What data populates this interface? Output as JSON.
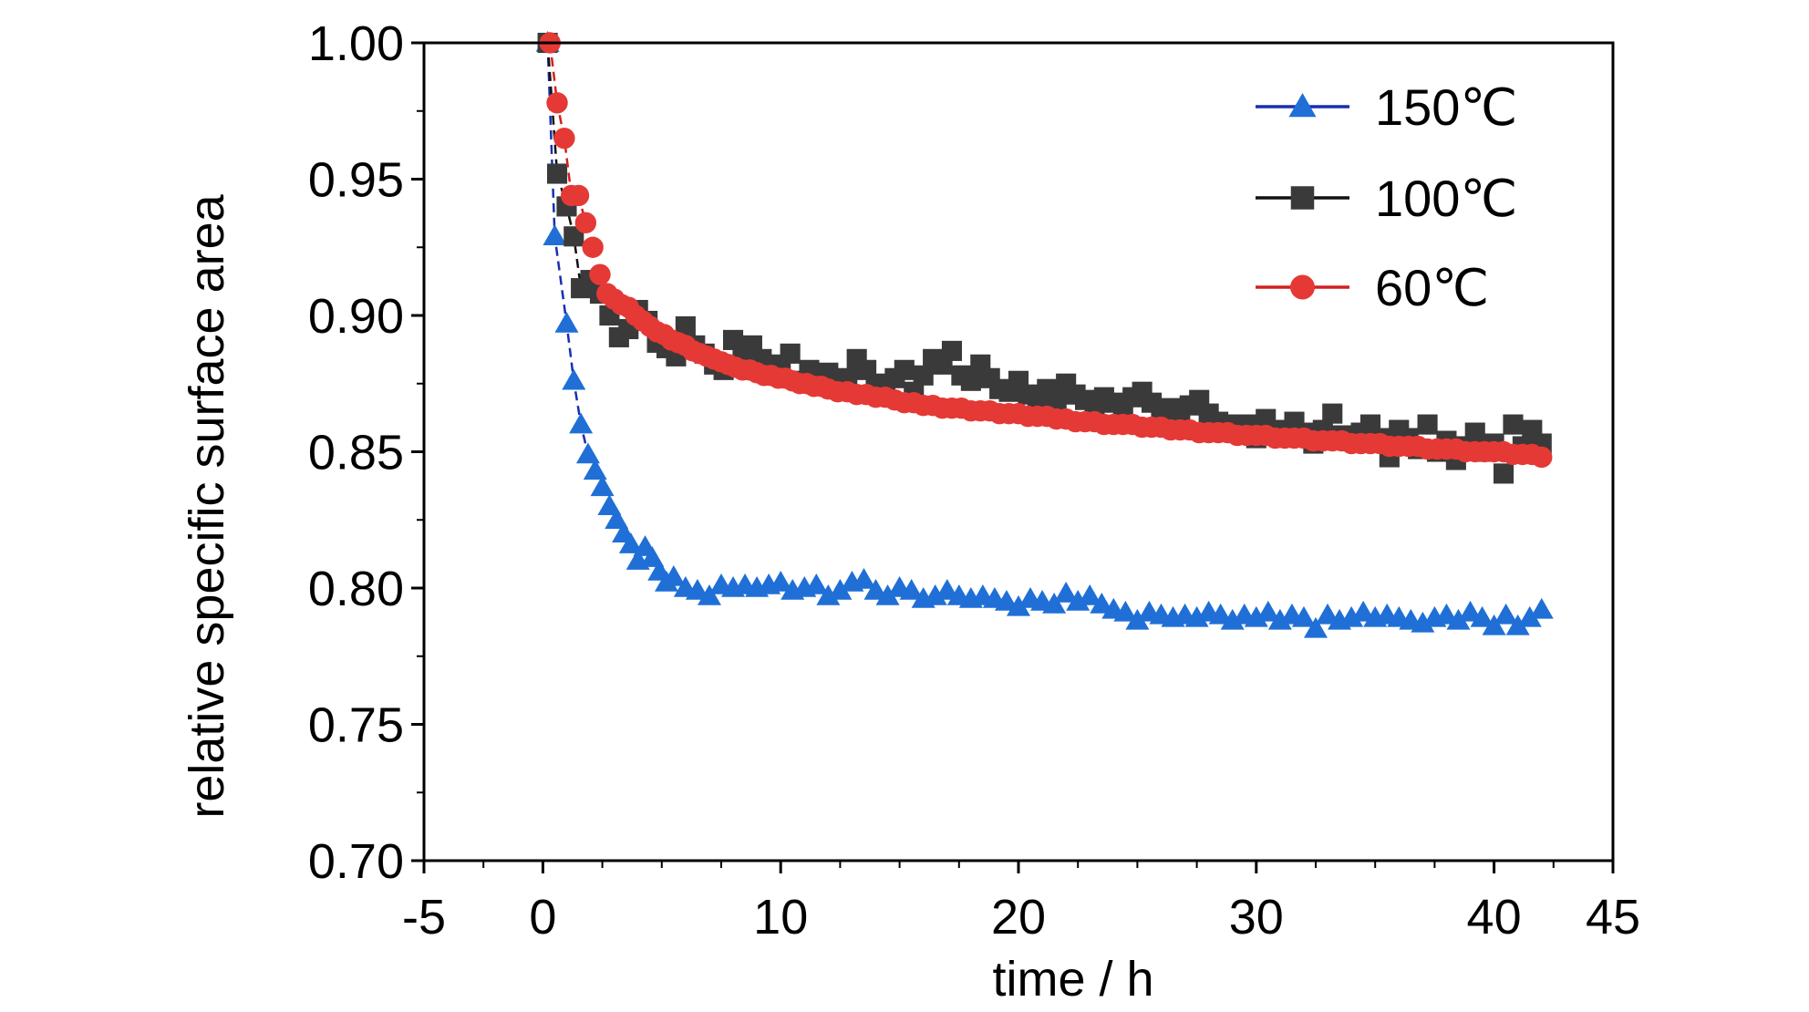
{
  "chart_data": {
    "type": "scatter",
    "xlabel": "time / h",
    "ylabel": "relative specific surface area",
    "xlim": [
      -5,
      45
    ],
    "ylim": [
      0.7,
      1.0
    ],
    "xticks": [
      "-5",
      "0",
      "10",
      "20",
      "30",
      "40",
      "45"
    ],
    "xtick_values": [
      -5,
      0,
      10,
      20,
      30,
      40,
      45
    ],
    "yticks": [
      "0.70",
      "0.75",
      "0.80",
      "0.85",
      "0.90",
      "0.95",
      "1.00"
    ],
    "ytick_values": [
      0.7,
      0.75,
      0.8,
      0.85,
      0.9,
      0.95,
      1.0
    ],
    "grid": false,
    "legend_position": "top-right",
    "series": [
      {
        "name": "150℃",
        "marker": "triangle",
        "color": "#1f6fd6",
        "line_color": "#1a2fb0",
        "x": [
          0.2,
          0.5,
          1.0,
          1.3,
          1.6,
          1.9,
          2.2,
          2.5,
          2.8,
          3.1,
          3.4,
          3.7,
          4.0,
          4.3,
          4.6,
          4.9,
          5.2,
          5.5,
          6.0,
          6.5,
          7.0,
          7.5,
          8.0,
          8.5,
          9.0,
          9.5,
          10.0,
          10.5,
          11.0,
          11.5,
          12.0,
          12.5,
          13.0,
          13.5,
          14.0,
          14.5,
          15.0,
          15.5,
          16.0,
          16.5,
          17.0,
          17.5,
          18.0,
          18.5,
          19.0,
          19.5,
          20.0,
          20.5,
          21.0,
          21.5,
          22.0,
          22.5,
          23.0,
          23.5,
          24.0,
          24.5,
          25.0,
          25.5,
          26.0,
          26.5,
          27.0,
          27.5,
          28.0,
          28.5,
          29.0,
          29.5,
          30.0,
          30.5,
          31.0,
          31.5,
          32.0,
          32.5,
          33.0,
          33.5,
          34.0,
          34.5,
          35.0,
          35.5,
          36.0,
          36.5,
          37.0,
          37.5,
          38.0,
          38.5,
          39.0,
          39.5,
          40.0,
          40.5,
          41.0,
          41.5,
          42.0
        ],
        "y": [
          1.0,
          0.929,
          0.897,
          0.876,
          0.86,
          0.849,
          0.843,
          0.837,
          0.83,
          0.825,
          0.82,
          0.816,
          0.81,
          0.815,
          0.811,
          0.806,
          0.802,
          0.804,
          0.8,
          0.799,
          0.797,
          0.801,
          0.8,
          0.801,
          0.8,
          0.801,
          0.802,
          0.799,
          0.8,
          0.801,
          0.797,
          0.799,
          0.802,
          0.803,
          0.799,
          0.797,
          0.8,
          0.799,
          0.796,
          0.797,
          0.799,
          0.797,
          0.796,
          0.797,
          0.796,
          0.795,
          0.793,
          0.796,
          0.795,
          0.794,
          0.798,
          0.795,
          0.797,
          0.794,
          0.792,
          0.791,
          0.788,
          0.791,
          0.79,
          0.789,
          0.79,
          0.789,
          0.791,
          0.79,
          0.788,
          0.79,
          0.789,
          0.791,
          0.788,
          0.79,
          0.789,
          0.785,
          0.79,
          0.788,
          0.789,
          0.791,
          0.789,
          0.79,
          0.789,
          0.788,
          0.787,
          0.789,
          0.79,
          0.788,
          0.791,
          0.789,
          0.786,
          0.79,
          0.786,
          0.789,
          0.792
        ]
      },
      {
        "name": "100℃",
        "marker": "square",
        "color": "#3a3a3a",
        "line_color": "#111111",
        "x": [
          0.2,
          0.6,
          1.0,
          1.3,
          1.6,
          2.0,
          2.4,
          2.8,
          3.2,
          3.6,
          4.0,
          4.4,
          4.8,
          5.2,
          5.6,
          6.0,
          6.4,
          6.8,
          7.2,
          7.6,
          8.0,
          8.4,
          8.8,
          9.2,
          9.6,
          10.0,
          10.4,
          10.8,
          11.2,
          11.6,
          12.0,
          12.4,
          12.8,
          13.2,
          13.6,
          14.0,
          14.4,
          14.8,
          15.2,
          15.6,
          16.0,
          16.4,
          16.8,
          17.2,
          17.6,
          18.0,
          18.4,
          18.8,
          19.2,
          19.6,
          20.0,
          20.4,
          20.8,
          21.2,
          21.6,
          22.0,
          22.4,
          22.8,
          23.2,
          23.6,
          24.0,
          24.4,
          24.8,
          25.2,
          25.6,
          26.0,
          26.4,
          26.8,
          27.2,
          27.6,
          28.0,
          28.4,
          28.8,
          29.2,
          29.6,
          30.0,
          30.4,
          30.8,
          31.2,
          31.6,
          32.0,
          32.4,
          32.8,
          33.2,
          33.6,
          34.0,
          34.4,
          34.8,
          35.2,
          35.6,
          36.0,
          36.4,
          36.8,
          37.2,
          37.6,
          38.0,
          38.4,
          38.8,
          39.2,
          39.6,
          40.0,
          40.4,
          40.8,
          41.2,
          41.6,
          42.0
        ],
        "y": [
          1.0,
          0.952,
          0.94,
          0.929,
          0.91,
          0.913,
          0.908,
          0.9,
          0.892,
          0.895,
          0.902,
          0.898,
          0.89,
          0.888,
          0.885,
          0.896,
          0.889,
          0.886,
          0.882,
          0.88,
          0.891,
          0.885,
          0.889,
          0.884,
          0.878,
          0.882,
          0.886,
          0.876,
          0.88,
          0.876,
          0.879,
          0.876,
          0.877,
          0.884,
          0.88,
          0.875,
          0.873,
          0.877,
          0.88,
          0.872,
          0.878,
          0.884,
          0.882,
          0.887,
          0.878,
          0.876,
          0.882,
          0.877,
          0.873,
          0.872,
          0.876,
          0.871,
          0.87,
          0.873,
          0.869,
          0.875,
          0.871,
          0.869,
          0.866,
          0.87,
          0.868,
          0.866,
          0.87,
          0.872,
          0.868,
          0.864,
          0.866,
          0.862,
          0.867,
          0.869,
          0.864,
          0.861,
          0.86,
          0.857,
          0.86,
          0.855,
          0.862,
          0.858,
          0.856,
          0.861,
          0.857,
          0.853,
          0.858,
          0.864,
          0.856,
          0.854,
          0.857,
          0.86,
          0.855,
          0.848,
          0.858,
          0.855,
          0.851,
          0.86,
          0.85,
          0.854,
          0.847,
          0.852,
          0.857,
          0.85,
          0.853,
          0.842,
          0.86,
          0.852,
          0.858,
          0.853
        ]
      },
      {
        "name": "60℃",
        "marker": "circle",
        "color": "#e53935",
        "line_color": "#d32020",
        "x": [
          0.3,
          0.6,
          0.9,
          1.2,
          1.5,
          1.8,
          2.1,
          2.4,
          2.7,
          3.0,
          3.3,
          3.6,
          3.9,
          4.2,
          4.5,
          4.8,
          5.1,
          5.4,
          5.7,
          6.0,
          6.3,
          6.6,
          6.9,
          7.2,
          7.5,
          7.8,
          8.1,
          8.4,
          8.7,
          9.0,
          9.3,
          9.6,
          9.9,
          10.2,
          10.5,
          10.8,
          11.1,
          11.4,
          11.7,
          12.0,
          12.4,
          12.8,
          13.2,
          13.6,
          14.0,
          14.4,
          14.8,
          15.2,
          15.6,
          16.0,
          16.4,
          16.8,
          17.2,
          17.6,
          18.0,
          18.4,
          18.8,
          19.2,
          19.6,
          20.0,
          20.4,
          20.8,
          21.2,
          21.6,
          22.0,
          22.4,
          22.8,
          23.2,
          23.6,
          24.0,
          24.4,
          24.8,
          25.2,
          25.6,
          26.0,
          26.4,
          26.8,
          27.2,
          27.6,
          28.0,
          28.4,
          28.8,
          29.2,
          29.6,
          30.0,
          30.4,
          30.8,
          31.2,
          31.6,
          32.0,
          32.4,
          32.8,
          33.2,
          33.6,
          34.0,
          34.4,
          34.8,
          35.2,
          35.6,
          36.0,
          36.4,
          36.8,
          37.2,
          37.6,
          38.0,
          38.4,
          38.8,
          39.2,
          39.6,
          40.0,
          40.4,
          40.8,
          41.2,
          41.6,
          42.0
        ],
        "y": [
          1.0,
          0.978,
          0.965,
          0.944,
          0.944,
          0.934,
          0.925,
          0.915,
          0.908,
          0.906,
          0.904,
          0.903,
          0.9,
          0.898,
          0.896,
          0.894,
          0.893,
          0.891,
          0.89,
          0.889,
          0.887,
          0.886,
          0.885,
          0.884,
          0.883,
          0.882,
          0.881,
          0.88,
          0.88,
          0.879,
          0.878,
          0.878,
          0.877,
          0.877,
          0.876,
          0.875,
          0.875,
          0.874,
          0.874,
          0.873,
          0.872,
          0.872,
          0.871,
          0.871,
          0.87,
          0.87,
          0.869,
          0.868,
          0.868,
          0.867,
          0.867,
          0.866,
          0.866,
          0.866,
          0.865,
          0.865,
          0.865,
          0.864,
          0.864,
          0.864,
          0.863,
          0.863,
          0.863,
          0.862,
          0.862,
          0.861,
          0.861,
          0.861,
          0.86,
          0.86,
          0.86,
          0.86,
          0.859,
          0.859,
          0.859,
          0.858,
          0.858,
          0.858,
          0.857,
          0.857,
          0.857,
          0.857,
          0.856,
          0.856,
          0.856,
          0.856,
          0.855,
          0.855,
          0.855,
          0.855,
          0.854,
          0.854,
          0.854,
          0.854,
          0.853,
          0.853,
          0.853,
          0.853,
          0.852,
          0.852,
          0.852,
          0.852,
          0.851,
          0.851,
          0.851,
          0.851,
          0.85,
          0.85,
          0.85,
          0.85,
          0.85,
          0.849,
          0.849,
          0.849,
          0.848
        ]
      }
    ]
  }
}
